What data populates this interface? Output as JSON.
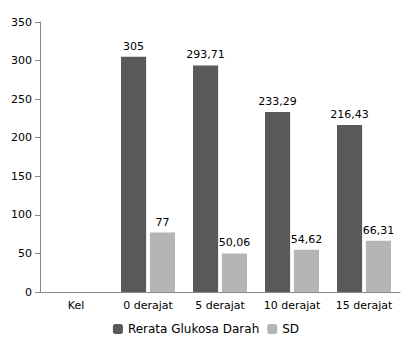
{
  "chart_data": {
    "type": "bar",
    "categories": [
      "Kel",
      "0 derajat",
      "5 derajat",
      "10 derajat",
      "15 derajat"
    ],
    "series": [
      {
        "name": "Rerata Glukosa Darah",
        "color": "#595959",
        "values": [
          null,
          305,
          293.71,
          233.29,
          216.43
        ],
        "value_labels": [
          null,
          "305",
          "293,71",
          "233,29",
          "216,43"
        ]
      },
      {
        "name": "SD",
        "color": "#b5b5b5",
        "values": [
          null,
          77,
          50.06,
          54.62,
          66.31
        ],
        "value_labels": [
          null,
          "77",
          "50,06",
          "54,62",
          "66,31"
        ]
      }
    ],
    "ylim": [
      0,
      350
    ],
    "yticks": [
      0,
      50,
      100,
      150,
      200,
      250,
      300,
      350
    ],
    "grid": false,
    "legend": "bottom",
    "data_labels": true
  }
}
